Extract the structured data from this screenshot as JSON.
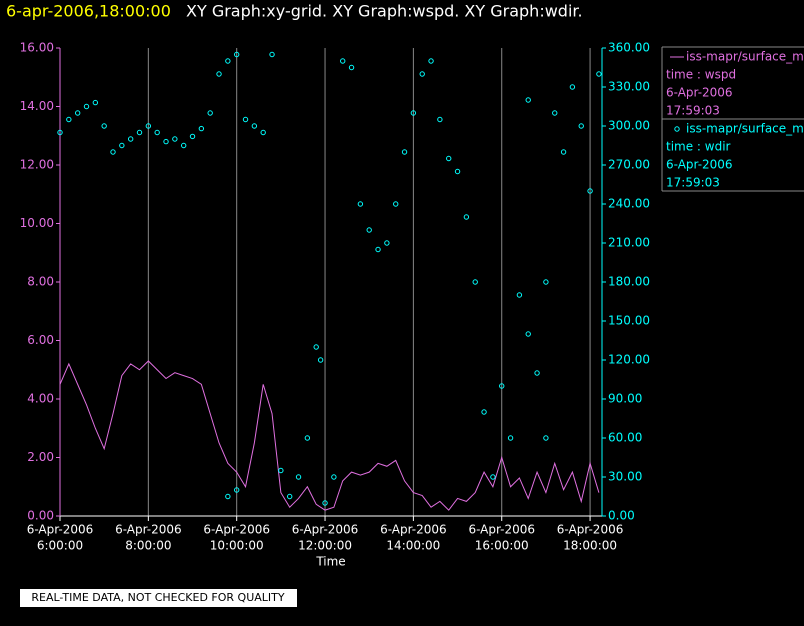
{
  "chart_data": {
    "type": "xy-time",
    "title_time": "6-apr-2006,18:00:00",
    "title": "XY Graph:xy-grid.  XY Graph:wspd.  XY Graph:wdir.",
    "xlabel": "Time",
    "footer": "REAL-TIME DATA, NOT CHECKED FOR QUALITY",
    "grid": true,
    "xlim": [
      6,
      18.27
    ],
    "xticks": [
      {
        "value": 6,
        "date": "6-Apr-2006",
        "label": "6:00:00"
      },
      {
        "value": 8,
        "date": "6-Apr-2006",
        "label": "8:00:00"
      },
      {
        "value": 10,
        "date": "6-Apr-2006",
        "label": "10:00:00"
      },
      {
        "value": 12,
        "date": "6-Apr-2006",
        "label": "12:00:00"
      },
      {
        "value": 14,
        "date": "6-Apr-2006",
        "label": "14:00:00"
      },
      {
        "value": 16,
        "date": "6-Apr-2006",
        "label": "16:00:00"
      },
      {
        "value": 18,
        "date": "6-Apr-2006",
        "label": "18:00:00"
      }
    ],
    "ylim": [
      0,
      16
    ],
    "yticks": [
      {
        "value": 0,
        "label": "0.00"
      },
      {
        "value": 2,
        "label": "2.00"
      },
      {
        "value": 4,
        "label": "4.00"
      },
      {
        "value": 6,
        "label": "6.00"
      },
      {
        "value": 8,
        "label": "8.00"
      },
      {
        "value": 10,
        "label": "10.00"
      },
      {
        "value": 12,
        "label": "12.00"
      },
      {
        "value": 14,
        "label": "14.00"
      },
      {
        "value": 16,
        "label": "16.00"
      }
    ],
    "y2lim": [
      0,
      360
    ],
    "y2ticks": [
      {
        "value": 0,
        "label": "0.00"
      },
      {
        "value": 30,
        "label": "30.00"
      },
      {
        "value": 60,
        "label": "60.00"
      },
      {
        "value": 90,
        "label": "90.00"
      },
      {
        "value": 120,
        "label": "120.00"
      },
      {
        "value": 150,
        "label": "150.00"
      },
      {
        "value": 180,
        "label": "180.00"
      },
      {
        "value": 210,
        "label": "210.00"
      },
      {
        "value": 240,
        "label": "240.00"
      },
      {
        "value": 270,
        "label": "270.00"
      },
      {
        "value": 300,
        "label": "300.00"
      },
      {
        "value": 330,
        "label": "330.00"
      },
      {
        "value": 360,
        "label": "360.00"
      }
    ],
    "series": [
      {
        "name": "iss-mapr/surface_m",
        "kind": "line",
        "axis": "y",
        "color": "#e070e0",
        "legend_lines": [
          "time : wspd",
          "6-Apr-2006",
          "17:59:03"
        ],
        "x": [
          6.0,
          6.2,
          6.4,
          6.6,
          6.8,
          7.0,
          7.2,
          7.4,
          7.6,
          7.8,
          8.0,
          8.2,
          8.4,
          8.6,
          8.8,
          9.0,
          9.2,
          9.4,
          9.6,
          9.8,
          10.0,
          10.2,
          10.4,
          10.6,
          10.8,
          11.0,
          11.2,
          11.4,
          11.6,
          11.8,
          12.0,
          12.2,
          12.4,
          12.6,
          12.8,
          13.0,
          13.2,
          13.4,
          13.6,
          13.8,
          14.0,
          14.2,
          14.4,
          14.6,
          14.8,
          15.0,
          15.2,
          15.4,
          15.6,
          15.8,
          16.0,
          16.2,
          16.4,
          16.6,
          16.8,
          17.0,
          17.2,
          17.4,
          17.6,
          17.8,
          18.0,
          18.2
        ],
        "values": [
          4.5,
          5.2,
          4.5,
          3.8,
          3.0,
          2.3,
          3.5,
          4.8,
          5.2,
          5.0,
          5.3,
          5.0,
          4.7,
          4.9,
          4.8,
          4.7,
          4.5,
          3.5,
          2.5,
          1.8,
          1.5,
          1.0,
          2.5,
          4.5,
          3.5,
          0.8,
          0.3,
          0.6,
          1.0,
          0.4,
          0.2,
          0.3,
          1.2,
          1.5,
          1.4,
          1.5,
          1.8,
          1.7,
          1.9,
          1.2,
          0.8,
          0.7,
          0.3,
          0.5,
          0.2,
          0.6,
          0.5,
          0.8,
          1.5,
          1.0,
          2.0,
          1.0,
          1.3,
          0.6,
          1.5,
          0.8,
          1.8,
          0.9,
          1.5,
          0.5,
          1.8,
          0.8
        ]
      },
      {
        "name": "iss-mapr/surface_m",
        "kind": "scatter",
        "axis": "y2",
        "color": "#00ffff",
        "legend_lines": [
          "time : wdir",
          "6-Apr-2006",
          "17:59:03"
        ],
        "x": [
          6.0,
          6.2,
          6.4,
          6.6,
          6.8,
          7.0,
          7.2,
          7.4,
          7.6,
          7.8,
          8.0,
          8.2,
          8.4,
          8.6,
          8.8,
          9.0,
          9.2,
          9.4,
          9.6,
          9.8,
          9.8,
          10.0,
          10.0,
          10.2,
          10.4,
          10.6,
          10.8,
          11.0,
          11.2,
          11.4,
          11.6,
          11.8,
          11.9,
          12.0,
          12.2,
          12.4,
          12.6,
          12.8,
          13.0,
          13.2,
          13.4,
          13.6,
          13.8,
          14.0,
          14.2,
          14.4,
          14.6,
          14.8,
          15.0,
          15.2,
          15.4,
          15.6,
          15.8,
          16.0,
          16.2,
          16.4,
          16.6,
          16.6,
          16.8,
          17.0,
          17.0,
          17.2,
          17.4,
          17.6,
          17.8,
          18.0,
          18.2
        ],
        "values": [
          295,
          305,
          310,
          315,
          318,
          300,
          280,
          285,
          290,
          295,
          300,
          295,
          288,
          290,
          285,
          292,
          298,
          310,
          340,
          350,
          15,
          355,
          20,
          305,
          300,
          295,
          355,
          35,
          15,
          30,
          60,
          130,
          120,
          10,
          30,
          350,
          345,
          240,
          220,
          205,
          210,
          240,
          280,
          310,
          340,
          350,
          305,
          275,
          265,
          230,
          180,
          80,
          30,
          100,
          60,
          170,
          140,
          320,
          110,
          60,
          180,
          310,
          280,
          330,
          300,
          250,
          340
        ]
      }
    ]
  }
}
